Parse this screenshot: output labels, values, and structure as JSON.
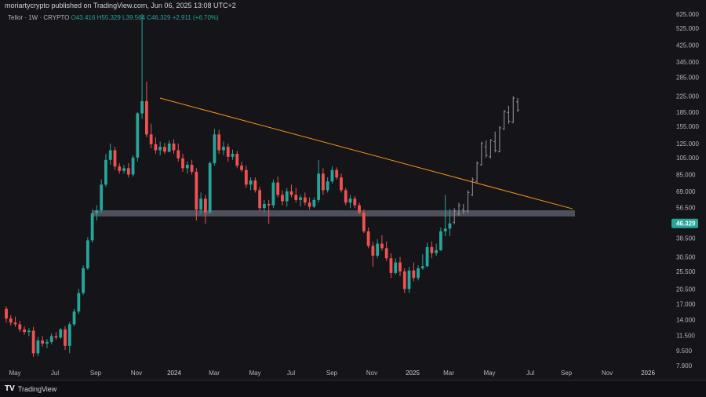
{
  "header": {
    "published": "moriartycrypto published on TradingView.com, Jun 06, 2025 13:08 UTC+2"
  },
  "legend": {
    "symbol": "Tellor · 1W · CRYPTO",
    "open": "O43.416",
    "high": "H55.329",
    "low": "L39.564",
    "close": "C46.329",
    "change": "+2.911 (+6.70%)"
  },
  "footer": {
    "brand": "TradingView",
    "logo": "TV"
  },
  "colors": {
    "up": "#26a69a",
    "down": "#ef5350",
    "projection": "#9598a1",
    "trendline": "#f7931a",
    "zone": "#5d606b",
    "price_badge": "#26a69a"
  },
  "chart_data": {
    "type": "candlestick",
    "scale": "log",
    "ylim": [
      7.9,
      625
    ],
    "current_price": "46.329",
    "y_ticks": [
      "625.000",
      "525.000",
      "425.000",
      "345.000",
      "285.000",
      "225.000",
      "185.000",
      "155.000",
      "125.000",
      "105.000",
      "85.000",
      "69.000",
      "56.500",
      "46.329",
      "38.500",
      "30.500",
      "25.500",
      "20.500",
      "17.000",
      "14.000",
      "11.500",
      "9.500",
      "7.900"
    ],
    "x_ticks": [
      "May",
      "Jul",
      "Sep",
      "Nov",
      "2024",
      "Mar",
      "May",
      "Jul",
      "Sep",
      "Nov",
      "2025",
      "Mar",
      "May",
      "Jul",
      "Sep",
      "Nov",
      "2026"
    ],
    "candles": [
      {
        "o": 16.0,
        "h": 16.5,
        "l": 13.5,
        "c": 14.2
      },
      {
        "o": 14.2,
        "h": 14.8,
        "l": 13.0,
        "c": 13.5
      },
      {
        "o": 13.5,
        "h": 14.5,
        "l": 12.8,
        "c": 13.2
      },
      {
        "o": 13.2,
        "h": 13.8,
        "l": 12.0,
        "c": 12.4
      },
      {
        "o": 12.4,
        "h": 12.9,
        "l": 11.6,
        "c": 12.0
      },
      {
        "o": 12.0,
        "h": 12.6,
        "l": 11.4,
        "c": 12.2
      },
      {
        "o": 12.2,
        "h": 12.8,
        "l": 8.8,
        "c": 9.2
      },
      {
        "o": 9.2,
        "h": 11.3,
        "l": 8.9,
        "c": 10.8
      },
      {
        "o": 10.8,
        "h": 11.4,
        "l": 10.0,
        "c": 10.4
      },
      {
        "o": 10.4,
        "h": 11.0,
        "l": 9.8,
        "c": 10.6
      },
      {
        "o": 10.6,
        "h": 11.8,
        "l": 10.3,
        "c": 11.4
      },
      {
        "o": 11.4,
        "h": 12.0,
        "l": 10.9,
        "c": 11.2
      },
      {
        "o": 11.2,
        "h": 12.6,
        "l": 11.0,
        "c": 12.4
      },
      {
        "o": 12.4,
        "h": 12.9,
        "l": 9.6,
        "c": 10.1
      },
      {
        "o": 10.1,
        "h": 13.6,
        "l": 9.2,
        "c": 13.2
      },
      {
        "o": 13.2,
        "h": 16.0,
        "l": 12.9,
        "c": 15.5
      },
      {
        "o": 15.5,
        "h": 20.5,
        "l": 15.0,
        "c": 19.5
      },
      {
        "o": 19.5,
        "h": 27.5,
        "l": 19.0,
        "c": 26.5
      },
      {
        "o": 26.5,
        "h": 39.0,
        "l": 26.0,
        "c": 37.5
      },
      {
        "o": 37.5,
        "h": 55.0,
        "l": 36.5,
        "c": 52.5
      },
      {
        "o": 52.5,
        "h": 58.0,
        "l": 48.0,
        "c": 54.5
      },
      {
        "o": 54.5,
        "h": 80.0,
        "l": 53.0,
        "c": 75.0
      },
      {
        "o": 75.0,
        "h": 110.0,
        "l": 73.0,
        "c": 102.0
      },
      {
        "o": 102.0,
        "h": 125.0,
        "l": 96.0,
        "c": 115.0
      },
      {
        "o": 115.0,
        "h": 120.0,
        "l": 90.0,
        "c": 94.0
      },
      {
        "o": 94.0,
        "h": 98.0,
        "l": 86.0,
        "c": 89.0
      },
      {
        "o": 89.0,
        "h": 96.0,
        "l": 86.0,
        "c": 92.0
      },
      {
        "o": 92.0,
        "h": 98.0,
        "l": 82.0,
        "c": 85.0
      },
      {
        "o": 85.0,
        "h": 108.0,
        "l": 83.0,
        "c": 105.0
      },
      {
        "o": 105.0,
        "h": 185.0,
        "l": 100.0,
        "c": 182.0
      },
      {
        "o": 182.0,
        "h": 625.0,
        "l": 170.0,
        "c": 212.0
      },
      {
        "o": 212.0,
        "h": 270.0,
        "l": 135.0,
        "c": 140.0
      },
      {
        "o": 140.0,
        "h": 160.0,
        "l": 118.0,
        "c": 124.0
      },
      {
        "o": 124.0,
        "h": 135.0,
        "l": 110.0,
        "c": 115.0
      },
      {
        "o": 115.0,
        "h": 128.0,
        "l": 108.0,
        "c": 120.0
      },
      {
        "o": 120.0,
        "h": 126.0,
        "l": 110.0,
        "c": 113.0
      },
      {
        "o": 113.0,
        "h": 130.0,
        "l": 112.0,
        "c": 125.0
      },
      {
        "o": 125.0,
        "h": 132.0,
        "l": 110.0,
        "c": 115.0
      },
      {
        "o": 115.0,
        "h": 125.0,
        "l": 100.0,
        "c": 104.0
      },
      {
        "o": 104.0,
        "h": 110.0,
        "l": 88.0,
        "c": 92.0
      },
      {
        "o": 92.0,
        "h": 100.0,
        "l": 86.0,
        "c": 96.0
      },
      {
        "o": 96.0,
        "h": 102.0,
        "l": 85.0,
        "c": 88.0
      },
      {
        "o": 88.0,
        "h": 92.0,
        "l": 48.0,
        "c": 55.0
      },
      {
        "o": 55.0,
        "h": 68.0,
        "l": 52.0,
        "c": 63.0
      },
      {
        "o": 63.0,
        "h": 66.0,
        "l": 46.0,
        "c": 53.0
      },
      {
        "o": 53.0,
        "h": 100.0,
        "l": 52.0,
        "c": 98.0
      },
      {
        "o": 98.0,
        "h": 150.0,
        "l": 95.0,
        "c": 140.0
      },
      {
        "o": 140.0,
        "h": 148.0,
        "l": 110.0,
        "c": 115.0
      },
      {
        "o": 115.0,
        "h": 128.0,
        "l": 108.0,
        "c": 120.0
      },
      {
        "o": 120.0,
        "h": 125.0,
        "l": 100.0,
        "c": 106.0
      },
      {
        "o": 106.0,
        "h": 116.0,
        "l": 102.0,
        "c": 110.0
      },
      {
        "o": 110.0,
        "h": 114.0,
        "l": 92.0,
        "c": 95.0
      },
      {
        "o": 95.0,
        "h": 100.0,
        "l": 88.0,
        "c": 90.0
      },
      {
        "o": 90.0,
        "h": 95.0,
        "l": 72.0,
        "c": 75.0
      },
      {
        "o": 75.0,
        "h": 82.0,
        "l": 70.0,
        "c": 79.0
      },
      {
        "o": 79.0,
        "h": 82.0,
        "l": 68.0,
        "c": 70.0
      },
      {
        "o": 70.0,
        "h": 73.0,
        "l": 54.0,
        "c": 56.0
      },
      {
        "o": 56.0,
        "h": 62.0,
        "l": 53.0,
        "c": 59.0
      },
      {
        "o": 59.0,
        "h": 62.0,
        "l": 46.0,
        "c": 58.0
      },
      {
        "o": 58.0,
        "h": 80.0,
        "l": 56.0,
        "c": 77.0
      },
      {
        "o": 77.0,
        "h": 83.0,
        "l": 64.0,
        "c": 66.0
      },
      {
        "o": 66.0,
        "h": 70.0,
        "l": 58.0,
        "c": 61.0
      },
      {
        "o": 61.0,
        "h": 72.0,
        "l": 57.0,
        "c": 69.0
      },
      {
        "o": 69.0,
        "h": 75.0,
        "l": 64.0,
        "c": 66.0
      },
      {
        "o": 66.0,
        "h": 72.0,
        "l": 60.0,
        "c": 62.0
      },
      {
        "o": 62.0,
        "h": 66.0,
        "l": 57.0,
        "c": 64.0
      },
      {
        "o": 64.0,
        "h": 68.0,
        "l": 58.0,
        "c": 60.0
      },
      {
        "o": 60.0,
        "h": 64.0,
        "l": 55.0,
        "c": 57.0
      },
      {
        "o": 57.0,
        "h": 64.0,
        "l": 56.0,
        "c": 62.0
      },
      {
        "o": 62.0,
        "h": 102.0,
        "l": 60.0,
        "c": 86.0
      },
      {
        "o": 86.0,
        "h": 92.0,
        "l": 66.0,
        "c": 70.0
      },
      {
        "o": 70.0,
        "h": 82.0,
        "l": 68.0,
        "c": 78.0
      },
      {
        "o": 78.0,
        "h": 94.0,
        "l": 76.0,
        "c": 90.0
      },
      {
        "o": 90.0,
        "h": 93.0,
        "l": 80.0,
        "c": 82.0
      },
      {
        "o": 82.0,
        "h": 86.0,
        "l": 68.0,
        "c": 70.0
      },
      {
        "o": 70.0,
        "h": 72.0,
        "l": 58.0,
        "c": 60.0
      },
      {
        "o": 60.0,
        "h": 66.0,
        "l": 56.0,
        "c": 63.0
      },
      {
        "o": 63.0,
        "h": 65.0,
        "l": 56.0,
        "c": 58.0
      },
      {
        "o": 58.0,
        "h": 60.0,
        "l": 52.0,
        "c": 53.0
      },
      {
        "o": 53.0,
        "h": 55.0,
        "l": 41.0,
        "c": 42.0
      },
      {
        "o": 42.0,
        "h": 44.0,
        "l": 34.0,
        "c": 35.0
      },
      {
        "o": 35.0,
        "h": 37.0,
        "l": 27.0,
        "c": 31.0
      },
      {
        "o": 31.0,
        "h": 38.0,
        "l": 30.0,
        "c": 36.0
      },
      {
        "o": 36.0,
        "h": 40.0,
        "l": 33.0,
        "c": 34.0
      },
      {
        "o": 34.0,
        "h": 37.0,
        "l": 29.0,
        "c": 30.0
      },
      {
        "o": 30.0,
        "h": 32.0,
        "l": 23.5,
        "c": 25.0
      },
      {
        "o": 25.0,
        "h": 30.0,
        "l": 24.5,
        "c": 28.5
      },
      {
        "o": 28.5,
        "h": 30.5,
        "l": 24.0,
        "c": 25.5
      },
      {
        "o": 25.5,
        "h": 26.5,
        "l": 19.5,
        "c": 20.5
      },
      {
        "o": 20.5,
        "h": 27.0,
        "l": 19.5,
        "c": 25.8
      },
      {
        "o": 25.8,
        "h": 28.5,
        "l": 22.5,
        "c": 23.5
      },
      {
        "o": 23.5,
        "h": 27.5,
        "l": 22.8,
        "c": 26.5
      },
      {
        "o": 26.5,
        "h": 31.5,
        "l": 26.0,
        "c": 27.2
      },
      {
        "o": 27.2,
        "h": 36.5,
        "l": 26.8,
        "c": 34.5
      },
      {
        "o": 34.5,
        "h": 37.0,
        "l": 30.0,
        "c": 32.0
      },
      {
        "o": 32.0,
        "h": 36.0,
        "l": 31.0,
        "c": 33.2
      },
      {
        "o": 33.2,
        "h": 44.0,
        "l": 32.8,
        "c": 42.0
      },
      {
        "o": 42.0,
        "h": 66.0,
        "l": 39.5,
        "c": 43.4
      },
      {
        "o": 43.416,
        "h": 55.329,
        "l": 39.564,
        "c": 46.329
      }
    ],
    "projection": [
      {
        "o": 47,
        "h": 56,
        "l": 46,
        "c": 54
      },
      {
        "o": 52,
        "h": 60,
        "l": 51,
        "c": 58
      },
      {
        "o": 55,
        "h": 59,
        "l": 52,
        "c": 54
      },
      {
        "o": 54,
        "h": 70,
        "l": 53,
        "c": 68
      },
      {
        "o": 66,
        "h": 82,
        "l": 65,
        "c": 80
      },
      {
        "o": 78,
        "h": 100,
        "l": 77,
        "c": 98
      },
      {
        "o": 96,
        "h": 128,
        "l": 95,
        "c": 125
      },
      {
        "o": 120,
        "h": 130,
        "l": 105,
        "c": 108
      },
      {
        "o": 106,
        "h": 132,
        "l": 104,
        "c": 130
      },
      {
        "o": 128,
        "h": 145,
        "l": 112,
        "c": 115
      },
      {
        "o": 113,
        "h": 155,
        "l": 112,
        "c": 152
      },
      {
        "o": 150,
        "h": 190,
        "l": 148,
        "c": 186
      },
      {
        "o": 184,
        "h": 200,
        "l": 160,
        "c": 165
      },
      {
        "o": 163,
        "h": 225,
        "l": 161,
        "c": 220
      },
      {
        "o": 210,
        "h": 220,
        "l": 185,
        "c": 190
      }
    ],
    "support_zone": [
      50.5,
      54.5
    ],
    "trendline": [
      {
        "x": 0,
        "y": 220
      },
      {
        "x": 1,
        "y": 55.5
      }
    ]
  }
}
